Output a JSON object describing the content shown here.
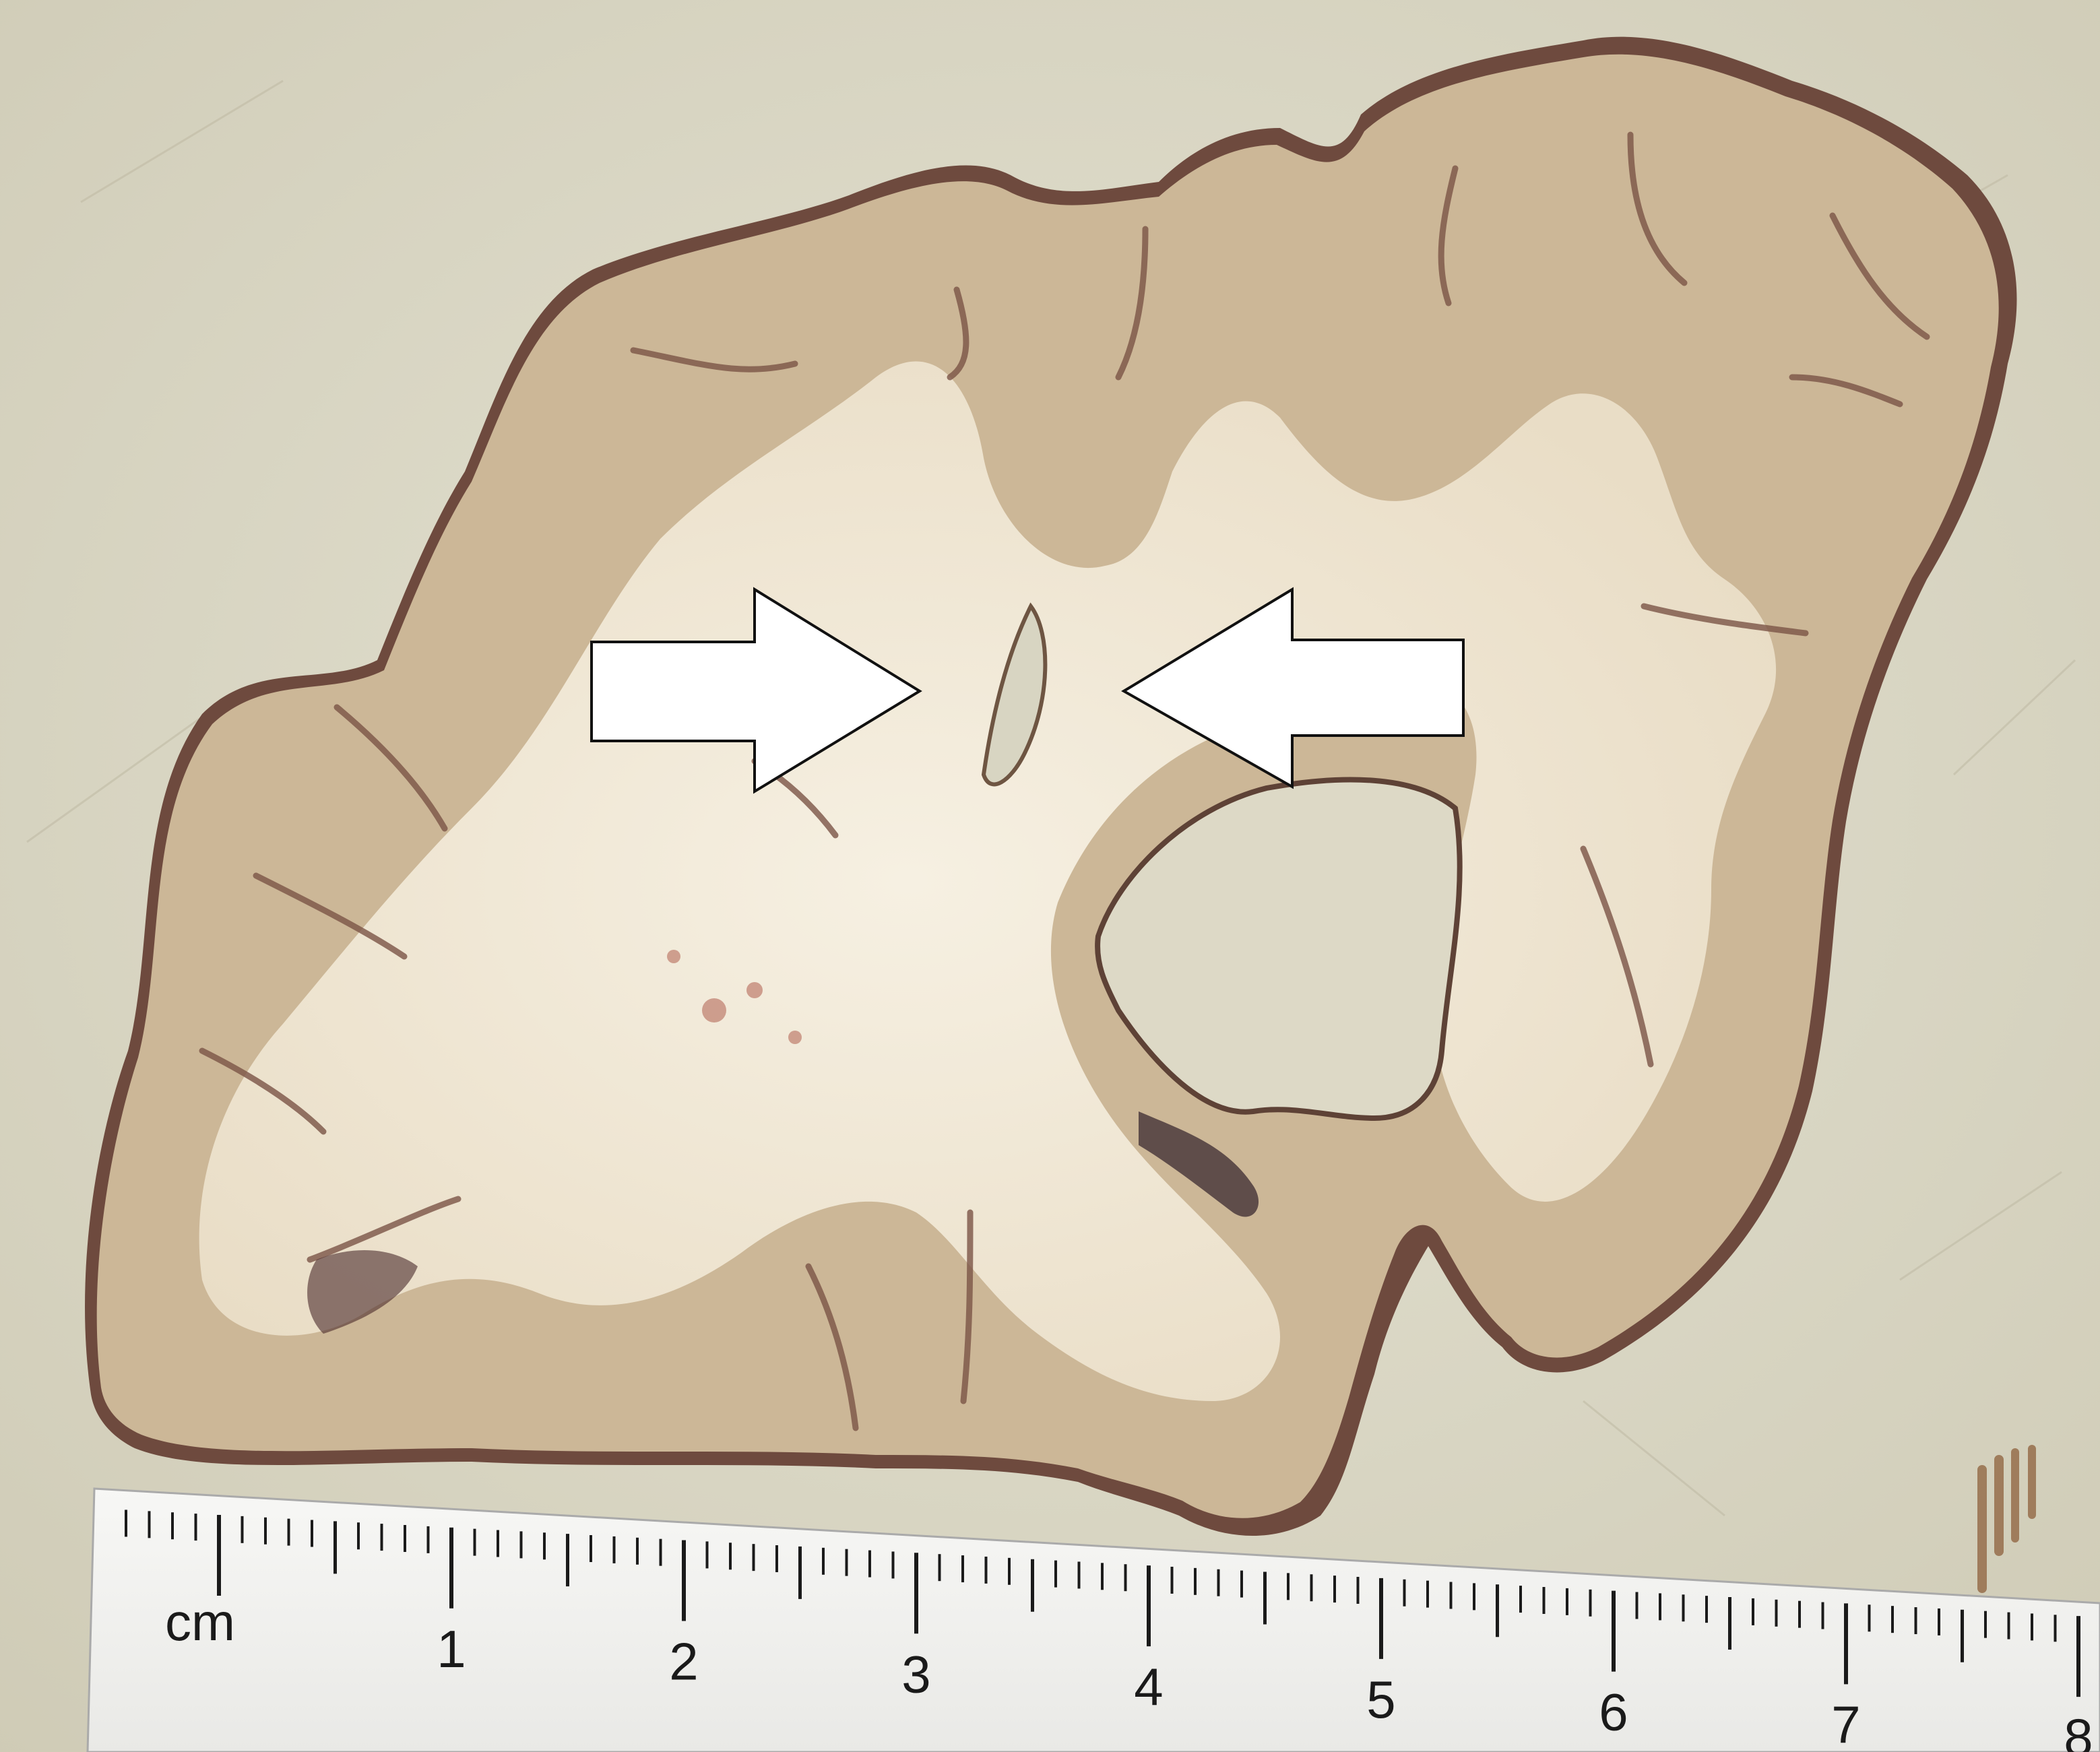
{
  "scene": {
    "subject": "coronal-brain-slice",
    "background_color": "#d9d6c4",
    "tissue_gray_color": "#cdb89a",
    "tissue_white_color": "#f1ead9",
    "tissue_dark_edge_color": "#5a3a32",
    "arrow_fill_color": "#ffffff",
    "arrow_stroke_color": "#111111"
  },
  "ruler": {
    "unit_label": "cm",
    "labels": [
      "1",
      "2",
      "3",
      "4",
      "5",
      "6",
      "7",
      "8"
    ],
    "background_color": "#f4f4f2"
  },
  "arrows": {
    "left": {
      "direction": "right",
      "icon": "arrow-right-icon"
    },
    "right": {
      "direction": "left",
      "icon": "arrow-left-icon"
    }
  }
}
